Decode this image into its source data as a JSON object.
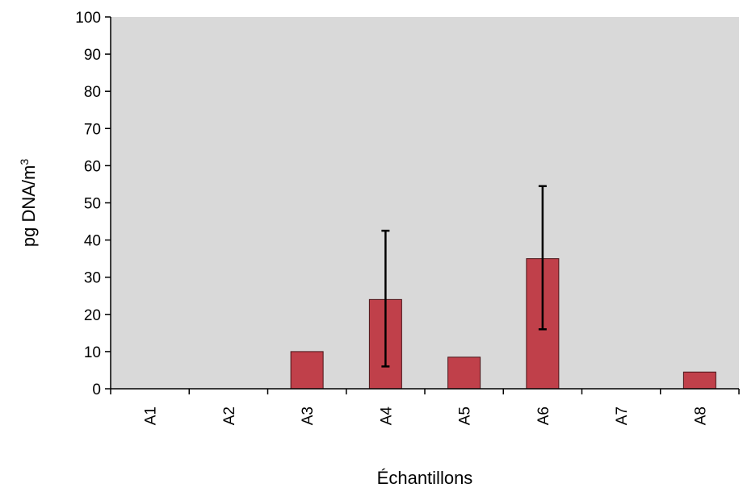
{
  "chart_data": {
    "type": "bar",
    "title": "",
    "xlabel": "Échantillons",
    "ylabel": "pg DNA/m",
    "ylabel_superscript": "3",
    "ylim": [
      0,
      100
    ],
    "yticks": [
      0,
      10,
      20,
      30,
      40,
      50,
      60,
      70,
      80,
      90,
      100
    ],
    "grid": false,
    "categories": [
      "A1",
      "A2",
      "A3",
      "A4",
      "A5",
      "A6",
      "A7",
      "A8"
    ],
    "values": [
      0,
      0,
      10,
      24,
      8.5,
      35,
      0,
      4.5
    ],
    "error_low": [
      null,
      null,
      null,
      6,
      null,
      16,
      null,
      null
    ],
    "error_high": [
      null,
      null,
      null,
      42.5,
      null,
      54.5,
      null,
      null
    ],
    "colors": {
      "bar_fill": "#c0404a",
      "bar_stroke": "#4a1418",
      "plot_background": "#d9d9d9",
      "axis": "#000000"
    }
  }
}
